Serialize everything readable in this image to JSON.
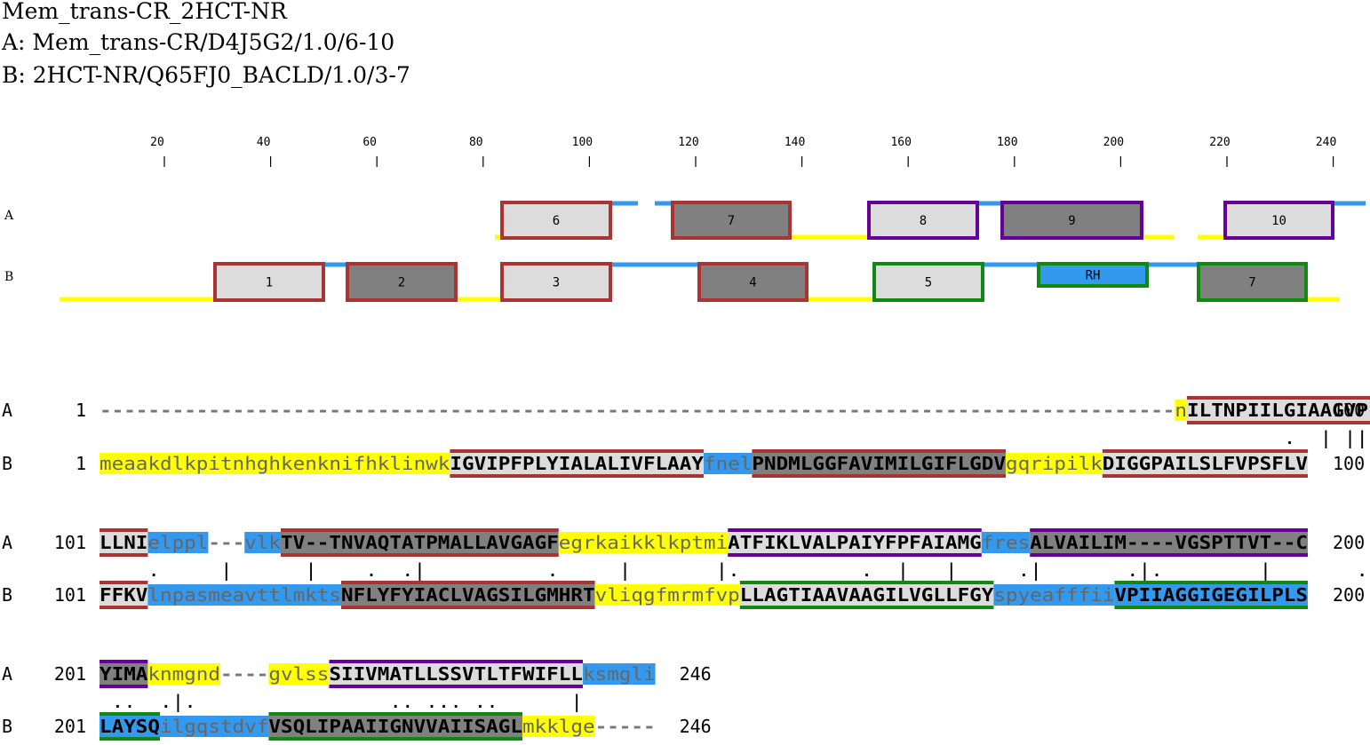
{
  "header": {
    "title": "Mem_trans-CR_2HCT-NR",
    "line_a": "A: Mem_trans-CR/D4J5G2/1.0/6-10",
    "line_b": "B: 2HCT-NR/Q65FJ0_BACLD/1.0/3-7"
  },
  "ruler": {
    "ticks": [
      "20",
      "40",
      "60",
      "80",
      "100",
      "120",
      "140",
      "160",
      "180",
      "200",
      "220",
      "240"
    ]
  },
  "tracks": {
    "labels": [
      "A",
      "B"
    ]
  },
  "colors": {
    "yellow": "#ffff00",
    "blue": "#3399ee",
    "light_gray": "#dcdcdc",
    "dark_gray": "#808080",
    "red_border": "#aa3333",
    "purple_border": "#660099",
    "green_border": "#118811"
  },
  "boxes_a": [
    {
      "label": "6",
      "fill": "light",
      "border": "red"
    },
    {
      "label": "7",
      "fill": "dark",
      "border": "red"
    },
    {
      "label": "8",
      "fill": "light",
      "border": "purple"
    },
    {
      "label": "9",
      "fill": "dark",
      "border": "purple"
    },
    {
      "label": "10",
      "fill": "light",
      "border": "purple"
    }
  ],
  "boxes_b": [
    {
      "label": "1",
      "fill": "light",
      "border": "red"
    },
    {
      "label": "2",
      "fill": "dark",
      "border": "red"
    },
    {
      "label": "3",
      "fill": "light",
      "border": "red"
    },
    {
      "label": "4",
      "fill": "dark",
      "border": "red"
    },
    {
      "label": "5",
      "fill": "light",
      "border": "green"
    },
    {
      "label": "RH",
      "fill": "blue",
      "border": "green"
    },
    {
      "label": "7",
      "fill": "dark",
      "border": "green"
    }
  ],
  "alignment": [
    {
      "a_label": "A",
      "a_start": "1",
      "a_end": "100",
      "b_label": "B",
      "b_start": "1",
      "b_end": "100",
      "a_segments": [
        {
          "text": "-----------------------------------------------------------------------------------------",
          "bg": "none"
        },
        {
          "text": "n",
          "bg": "yellow",
          "lower": true
        },
        {
          "text": "ILTNPIILGIAAGVPFS",
          "bg": "light",
          "border": "red"
        }
      ],
      "match": "                                                                                                  .  | ||  .",
      "b_segments": [
        {
          "text": "meaakdlkpitnhghkenknifhklinwk",
          "bg": "yellow",
          "lower": true
        },
        {
          "text": "IGVIPFPLYIALALIVFLAAY",
          "bg": "light",
          "border": "red"
        },
        {
          "text": "fnel",
          "bg": "blue",
          "lower": true
        },
        {
          "text": "PNDMLGGFAVIMILGIFLGDV",
          "bg": "dark",
          "border": "red"
        },
        {
          "text": "gqripilk",
          "bg": "yellow",
          "lower": true
        },
        {
          "text": "DIGGPAILSLFVPSFLV",
          "bg": "light",
          "border": "red"
        }
      ]
    },
    {
      "a_label": "A",
      "a_start": "101",
      "a_end": "200",
      "b_label": "B",
      "b_start": "101",
      "b_end": "200",
      "a_segments": [
        {
          "text": "LLNI",
          "bg": "light",
          "border": "red"
        },
        {
          "text": "elppl",
          "bg": "blue",
          "lower": true
        },
        {
          "text": "---",
          "bg": "none"
        },
        {
          "text": "vlk",
          "bg": "blue",
          "lower": true
        },
        {
          "text": "TV--TNVAQTATPMALLAVGAGF",
          "bg": "dark",
          "border": "red"
        },
        {
          "text": "egrkaikklkptmi",
          "bg": "yellow",
          "lower": true
        },
        {
          "text": "ATFIKLVALPAIYFPFAIAMG",
          "bg": "light",
          "border": "purple"
        },
        {
          "text": "fres",
          "bg": "blue",
          "lower": true
        },
        {
          "text": "ALVAILIM----VGSPTTVT--C",
          "bg": "dark",
          "border": "purple"
        }
      ],
      "match": "    .     |      |    .  .|          .     |       |.          .  |   |     .|       .|.        |       .",
      "b_segments": [
        {
          "text": "FFKV",
          "bg": "light",
          "border": "red"
        },
        {
          "text": "lnpasmeavttlmkts",
          "bg": "blue",
          "lower": true
        },
        {
          "text": "NFLYFYIACLVAGSILGMHRT",
          "bg": "dark",
          "border": "red"
        },
        {
          "text": "vliqgfmrmfvp",
          "bg": "yellow",
          "lower": true
        },
        {
          "text": "LLAGTIAAVAAGILVGLLFGY",
          "bg": "light",
          "border": "green"
        },
        {
          "text": "spyeafffii",
          "bg": "blue",
          "lower": true
        },
        {
          "text": "VPIIAGGIGEGILPLS",
          "bg": "blue",
          "border": "green"
        }
      ]
    },
    {
      "a_label": "A",
      "a_start": "201",
      "a_end": "246",
      "b_label": "B",
      "b_start": "201",
      "b_end": "246",
      "a_segments": [
        {
          "text": "YIMA",
          "bg": "dark",
          "border": "purple"
        },
        {
          "text": "knmgnd",
          "bg": "yellow",
          "lower": true
        },
        {
          "text": "----",
          "bg": "none"
        },
        {
          "text": "gvlss",
          "bg": "yellow",
          "lower": true
        },
        {
          "text": "SIIVMATLLSSVTLTFWIFLL",
          "bg": "light",
          "border": "purple"
        },
        {
          "text": "ksmgli",
          "bg": "blue",
          "lower": true
        }
      ],
      "match": " ..  .|.                .. ... ..      |",
      "b_segments": [
        {
          "text": "LAYSQ",
          "bg": "blue",
          "border": "green"
        },
        {
          "text": "ilgqstdvf",
          "bg": "blue",
          "lower": true
        },
        {
          "text": "VSQLIPAAIIGNVVAIISAGL",
          "bg": "dark",
          "border": "green"
        },
        {
          "text": "mkklge",
          "bg": "yellow",
          "lower": true
        },
        {
          "text": "-----",
          "bg": "none"
        }
      ]
    }
  ]
}
